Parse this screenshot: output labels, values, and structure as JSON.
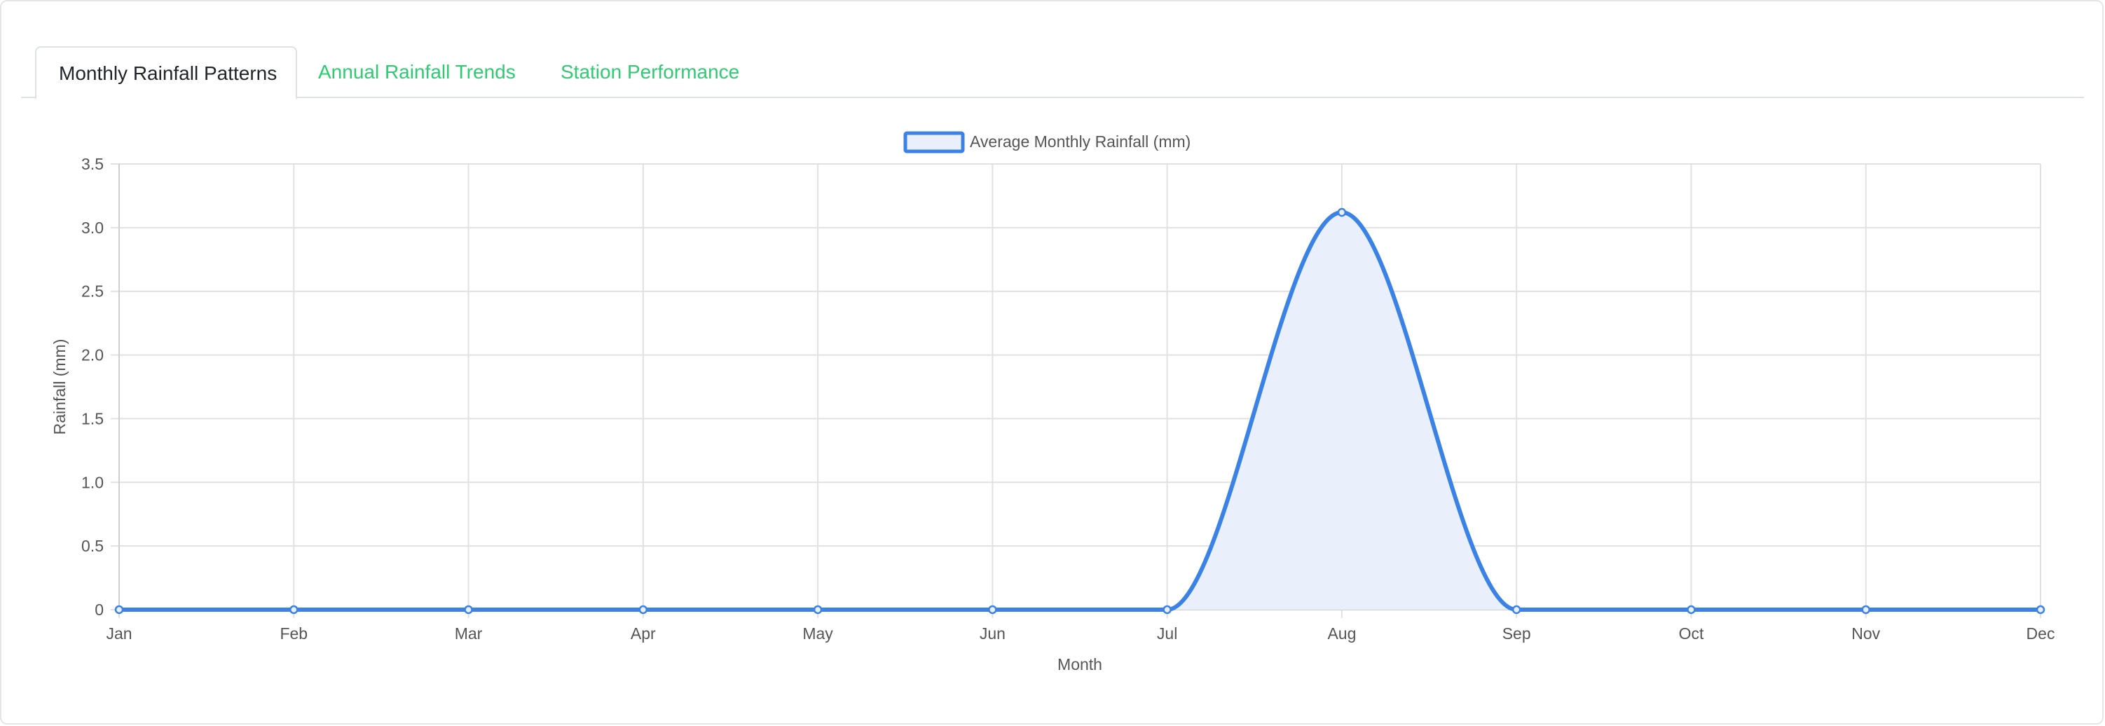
{
  "tabs": [
    {
      "label": "Monthly Rainfall Patterns",
      "active": true
    },
    {
      "label": "Annual Rainfall Trends",
      "active": false
    },
    {
      "label": "Station Performance",
      "active": false
    }
  ],
  "colors": {
    "accent": "#2ecc71",
    "line": "#3b82e6",
    "fill": "#e9f0fb",
    "grid": "#e1e1e1"
  },
  "chart_data": {
    "type": "line",
    "categories": [
      "Jan",
      "Feb",
      "Mar",
      "Apr",
      "May",
      "Jun",
      "Jul",
      "Aug",
      "Sep",
      "Oct",
      "Nov",
      "Dec"
    ],
    "series": [
      {
        "name": "Average Monthly Rainfall (mm)",
        "values": [
          0,
          0,
          0,
          0,
          0,
          0,
          0,
          3.12,
          0,
          0,
          0,
          0
        ],
        "fill": true
      }
    ],
    "xlabel": "Month",
    "ylabel": "Rainfall (mm)",
    "ylim": [
      0,
      3.5
    ],
    "yticks": [
      "0",
      "0.5",
      "1.0",
      "1.5",
      "2.0",
      "2.5",
      "3.0",
      "3.5"
    ],
    "ytick_values": [
      0,
      0.5,
      1.0,
      1.5,
      2.0,
      2.5,
      3.0,
      3.5
    ],
    "grid": true,
    "legend": "top-center"
  }
}
